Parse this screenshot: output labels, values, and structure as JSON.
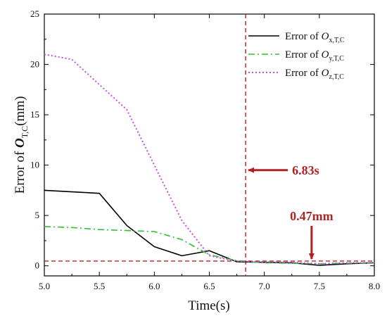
{
  "chart_data": {
    "type": "line",
    "xlabel": "Time(s)",
    "ylabel": {
      "prefix": "Error of ",
      "symbol": "O",
      "subscript": "T,C",
      "suffix": "(mm)"
    },
    "xlim": [
      5.0,
      8.0
    ],
    "ylim": [
      -1,
      25
    ],
    "x_ticks": [
      "5.0",
      "5.5",
      "6.0",
      "6.5",
      "7.0",
      "7.5",
      "8.0"
    ],
    "y_ticks": [
      "0",
      "5",
      "10",
      "15",
      "20",
      "25"
    ],
    "grid": false,
    "legend_position": "top-right",
    "series": [
      {
        "name": "Error of O",
        "name_subscript": "x,T,C",
        "color": "#000000",
        "style": "solid",
        "x": [
          5.0,
          5.5,
          5.75,
          6.0,
          6.25,
          6.4,
          6.5,
          6.75,
          7.0,
          7.25,
          7.5,
          7.75,
          8.0
        ],
        "y": [
          7.5,
          7.2,
          4.0,
          1.9,
          1.0,
          1.3,
          1.5,
          0.4,
          0.35,
          0.3,
          0.05,
          0.2,
          0.3
        ]
      },
      {
        "name": "Error of O",
        "name_subscript": "y,T,C",
        "color": "#2fbf2f",
        "style": "dashdot",
        "x": [
          5.0,
          5.25,
          5.5,
          5.75,
          6.0,
          6.25,
          6.5,
          6.75,
          7.0,
          7.25,
          7.5,
          7.75,
          8.0
        ],
        "y": [
          3.9,
          3.8,
          3.6,
          3.5,
          3.4,
          2.6,
          1.1,
          0.5,
          0.3,
          0.25,
          0.2,
          0.25,
          0.3
        ]
      },
      {
        "name": "Error of O",
        "name_subscript": "z,T,C",
        "color": "#c94ce8",
        "style": "dotted",
        "x": [
          5.0,
          5.25,
          5.5,
          5.75,
          6.0,
          6.25,
          6.5,
          6.75,
          7.0,
          7.25,
          7.5,
          7.75,
          8.0
        ],
        "y": [
          21.0,
          20.5,
          18.0,
          15.5,
          10.0,
          4.5,
          1.0,
          0.45,
          0.4,
          0.35,
          0.2,
          0.3,
          0.3
        ]
      }
    ],
    "reference_lines": [
      {
        "orientation": "vertical",
        "value": 6.83,
        "color": "#b22222",
        "style": "dashed"
      },
      {
        "orientation": "horizontal",
        "value": 0.47,
        "color": "#b22222",
        "style": "dashed"
      }
    ],
    "annotations": [
      {
        "text": "6.83s",
        "arrow_to_x": 6.83,
        "arrow_to_y": 9.5,
        "color": "#b22222"
      },
      {
        "text": "0.47mm",
        "arrow_to_x": 7.43,
        "arrow_to_y": 0.47,
        "color": "#b22222"
      }
    ]
  }
}
